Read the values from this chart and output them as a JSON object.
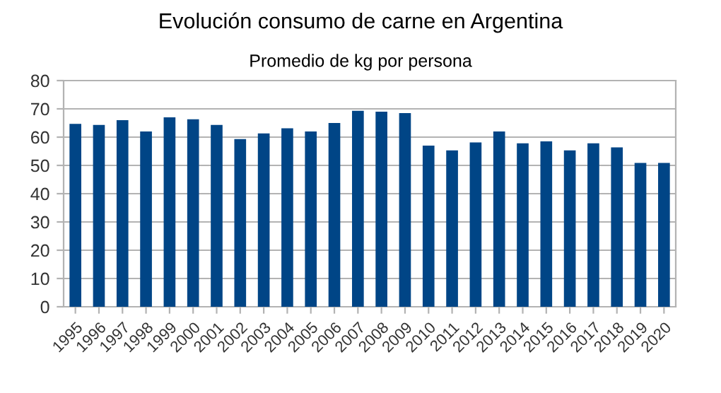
{
  "chart_data": {
    "type": "bar",
    "title": "Evolución consumo de carne en Argentina",
    "subtitle": "Promedio de kg por persona",
    "categories": [
      "1995",
      "1996",
      "1997",
      "1998",
      "1999",
      "2000",
      "2001",
      "2002",
      "2003",
      "2004",
      "2005",
      "2006",
      "2007",
      "2008",
      "2009",
      "2010",
      "2011",
      "2012",
      "2013",
      "2014",
      "2015",
      "2016",
      "2017",
      "2018",
      "2019",
      "2020"
    ],
    "values": [
      64.7,
      64.3,
      66.0,
      62.0,
      67.0,
      66.3,
      64.3,
      59.3,
      61.3,
      63.1,
      62.0,
      65.0,
      69.3,
      69.0,
      68.5,
      57.0,
      55.3,
      58.1,
      62.0,
      57.8,
      58.5,
      55.3,
      57.8,
      56.4,
      50.9,
      50.9
    ],
    "color": "#004586",
    "ylim": [
      0,
      80
    ],
    "yticks": [
      0,
      10,
      20,
      30,
      40,
      50,
      60,
      70,
      80
    ],
    "grid": "y"
  }
}
